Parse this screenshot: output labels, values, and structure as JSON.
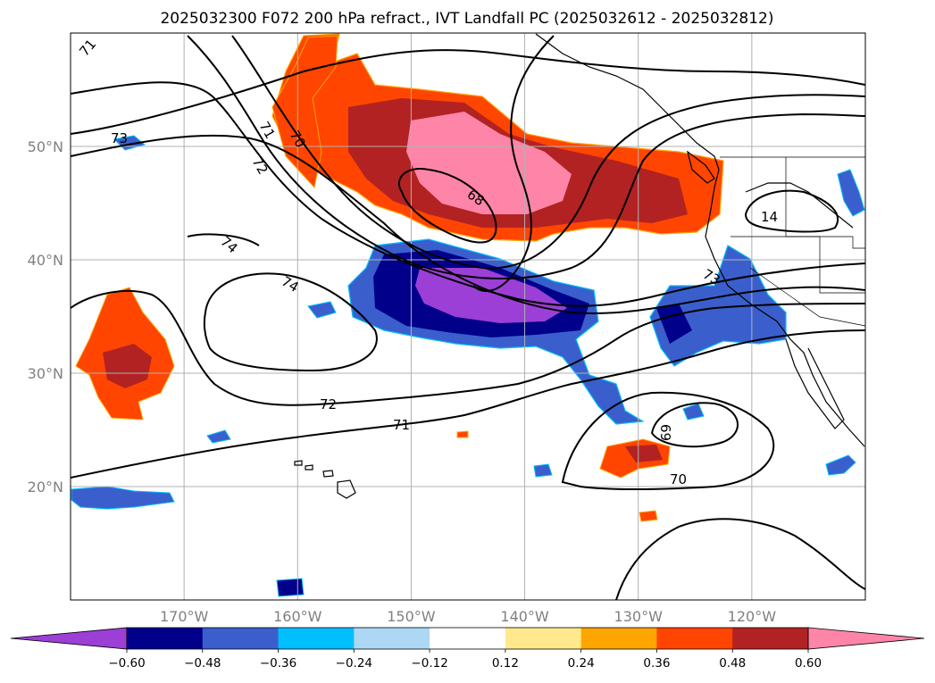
{
  "title": "2025032300 F072 200 hPa refract., IVT Landfall PC (2025032612 - 2025032812)",
  "map": {
    "lon_range": [
      -180,
      -110
    ],
    "lat_range": [
      10,
      60
    ],
    "lon_ticks": [
      {
        "value": -170,
        "label": "170°W"
      },
      {
        "value": -160,
        "label": "160°W"
      },
      {
        "value": -150,
        "label": "150°W"
      },
      {
        "value": -140,
        "label": "140°W"
      },
      {
        "value": -130,
        "label": "130°W"
      },
      {
        "value": -120,
        "label": "120°W"
      }
    ],
    "lat_ticks": [
      {
        "value": 20,
        "label": "20°N"
      },
      {
        "value": 30,
        "label": "30°N"
      },
      {
        "value": 40,
        "label": "40°N"
      },
      {
        "value": 50,
        "label": "50°N"
      }
    ],
    "grid": true,
    "contour_labels": [
      "71",
      "71",
      "70",
      "72",
      "74",
      "74",
      "68",
      "72",
      "71",
      "69",
      "70",
      "73",
      "14",
      "73"
    ]
  },
  "colorbar": {
    "orientation": "horizontal",
    "extend": "both",
    "colors": [
      "#9b3fd6",
      "#00008b",
      "#3a5fcd",
      "#00bfff",
      "#add8f5",
      "#ffffff",
      "#ffe98c",
      "#ffa500",
      "#ff4500",
      "#b22222",
      "#ff85a8"
    ],
    "tick_labels": [
      "−0.60",
      "−0.48",
      "−0.36",
      "−0.24",
      "−0.12",
      "0.12",
      "0.24",
      "0.36",
      "0.48",
      "0.60"
    ]
  }
}
